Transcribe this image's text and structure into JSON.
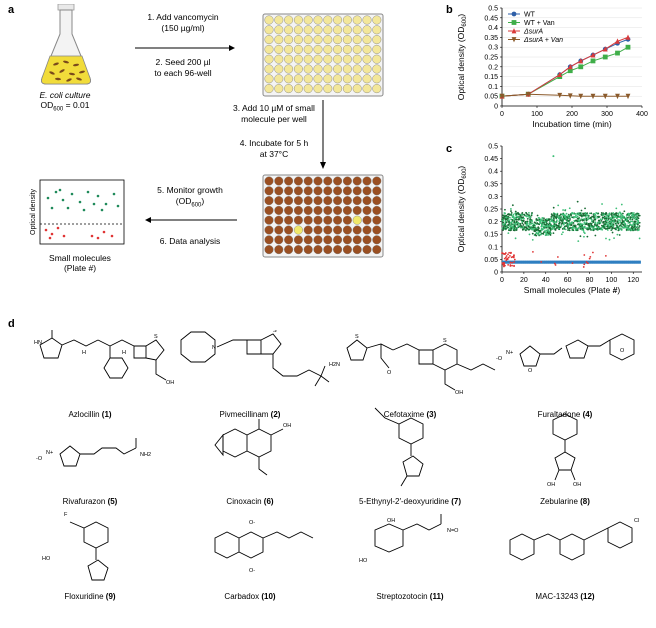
{
  "panels": {
    "a": "a",
    "b": "b",
    "c": "c",
    "d": "d"
  },
  "panel_a": {
    "culture_line1": "E. coli culture",
    "culture_line2": "OD",
    "culture_sub": "600",
    "culture_eq": " = 0.01",
    "step1_line1": "1. Add vancomycin",
    "step1_line2": "(150 µg/ml)",
    "step2_line1": "2. Seed 200 µl",
    "step2_line2": "to each 96-well",
    "step3_line1": "3. Add 10 µM of small",
    "step3_line2": "molecule per well",
    "step4_line1": "4. Incubate for 5 h",
    "step4_line2": "at 37°C",
    "step5_line1": "5. Monitor growth",
    "step5_line2": "(OD",
    "step5_sub": "600",
    "step5_end": ")",
    "step6": "6. Data analysis",
    "mini_ylabel": "Optical density",
    "mini_xlabel_1": "Small molecules",
    "mini_xlabel_2": "(Plate #)"
  },
  "chart_data": [
    {
      "type": "line",
      "xlabel": "Incubation time (min)",
      "ylabel": "Optical density (OD600)",
      "xlim": [
        0,
        400
      ],
      "ylim": [
        0,
        0.5
      ],
      "xticks": [
        0,
        100,
        200,
        300,
        400
      ],
      "yticks": [
        0,
        0.05,
        0.1,
        0.15,
        0.2,
        0.25,
        0.3,
        0.35,
        0.4,
        0.45,
        0.5
      ],
      "ytick_labels": [
        "0",
        "0.05",
        "0.1",
        "0.15",
        "0.2",
        "0.25",
        "0.3",
        "0.35",
        "0.4",
        "0.45",
        "0.5"
      ],
      "legend_position": "top-left",
      "x": [
        0,
        75,
        165,
        195,
        225,
        260,
        295,
        330,
        360
      ],
      "series": [
        {
          "name": "WT",
          "color": "#2e5fa8",
          "marker": "circle",
          "values": [
            0.05,
            0.06,
            0.16,
            0.2,
            0.23,
            0.26,
            0.29,
            0.32,
            0.34
          ]
        },
        {
          "name": "WT + Van",
          "color": "#3fae49",
          "marker": "square",
          "values": [
            0.05,
            0.06,
            0.15,
            0.18,
            0.2,
            0.23,
            0.25,
            0.27,
            0.3
          ]
        },
        {
          "name": "ΔsurA",
          "color": "#d93a3a",
          "marker": "triangle",
          "values": [
            0.05,
            0.06,
            0.16,
            0.2,
            0.23,
            0.26,
            0.29,
            0.33,
            0.35
          ]
        },
        {
          "name": "ΔsurA + Van",
          "color": "#8b5a2b",
          "marker": "triangle-down",
          "values": [
            0.05,
            0.06,
            0.055,
            0.052,
            0.05,
            0.05,
            0.05,
            0.05,
            0.05
          ]
        }
      ]
    },
    {
      "type": "scatter",
      "xlabel": "Small molecules (Plate #)",
      "ylabel": "Optical density (OD600)",
      "xlim": [
        0,
        128
      ],
      "ylim": [
        0,
        0.5
      ],
      "xticks": [
        0,
        20,
        40,
        60,
        80,
        100,
        120
      ],
      "yticks": [
        0,
        0.05,
        0.1,
        0.15,
        0.2,
        0.25,
        0.3,
        0.35,
        0.4,
        0.45,
        0.5
      ],
      "ytick_labels": [
        "0",
        "0.05",
        "0.1",
        "0.15",
        "0.2",
        "0.25",
        "0.3",
        "0.35",
        "0.4",
        "0.45",
        "0.5"
      ],
      "series": [
        {
          "color": "#1f6e3a",
          "description_band": [
            0.17,
            0.24
          ]
        },
        {
          "color": "#d93a3a",
          "description_band": [
            0.02,
            0.07
          ]
        },
        {
          "color": "#2f7fc1",
          "description_band": [
            0.035,
            0.045
          ]
        }
      ],
      "outliers": [
        {
          "x": 47,
          "y": 0.46
        }
      ]
    }
  ],
  "molecules": [
    {
      "name": "Azlocillin ",
      "num": "(1)"
    },
    {
      "name": "Pivmecillinam ",
      "num": "(2)"
    },
    {
      "name": "Cefotaxime ",
      "num": "(3)"
    },
    {
      "name": "Furaltadone ",
      "num": "(4)"
    },
    {
      "name": "Rivafurazon ",
      "num": "(5)"
    },
    {
      "name": "Cinoxacin ",
      "num": "(6)"
    },
    {
      "name": "5-Ethynyl-2′-deoxyuridine ",
      "num": "(7)"
    },
    {
      "name": "Zebularine ",
      "num": "(8)"
    },
    {
      "name": "Floxuridine ",
      "num": "(9)"
    },
    {
      "name": "Carbadox ",
      "num": "(10)"
    },
    {
      "name": "Streptozotocin ",
      "num": "(11)"
    },
    {
      "name": "MAC-13243 ",
      "num": "(12)"
    }
  ]
}
